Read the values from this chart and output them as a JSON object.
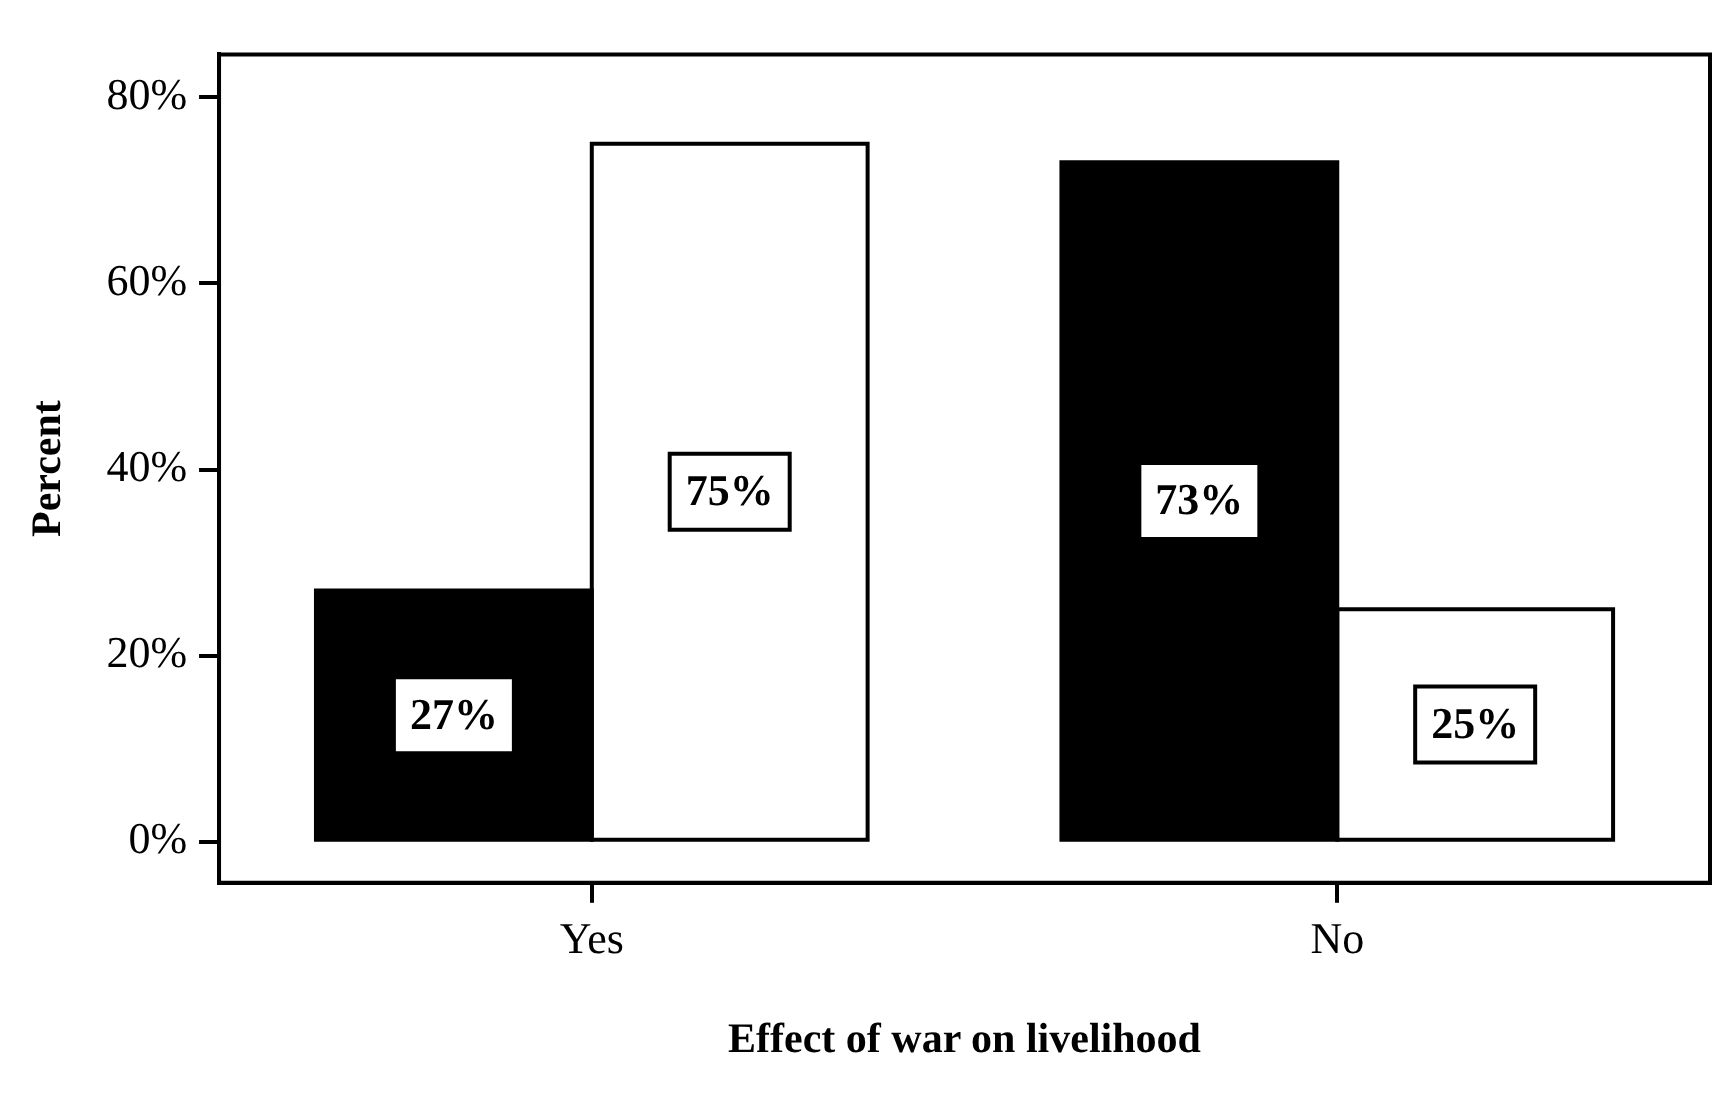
{
  "chart_data": {
    "type": "bar",
    "xlabel": "Effect of war on livelihood",
    "ylabel": "Percent",
    "categories": [
      "Yes",
      "No"
    ],
    "series": [
      {
        "color": "#000000",
        "values": [
          27,
          73
        ],
        "value_labels": [
          "27%",
          "73%"
        ]
      },
      {
        "color": "#ffffff",
        "values": [
          75,
          25
        ],
        "value_labels": [
          "75%",
          "25%"
        ]
      }
    ],
    "ylim": [
      -4.4,
      84.6
    ],
    "yticks": [
      {
        "value": 0,
        "label": "0%"
      },
      {
        "value": 20,
        "label": "20%"
      },
      {
        "value": 40,
        "label": "40%"
      },
      {
        "value": 60,
        "label": "60%"
      },
      {
        "value": 80,
        "label": "80%"
      }
    ],
    "grid": false,
    "legend": false
  }
}
